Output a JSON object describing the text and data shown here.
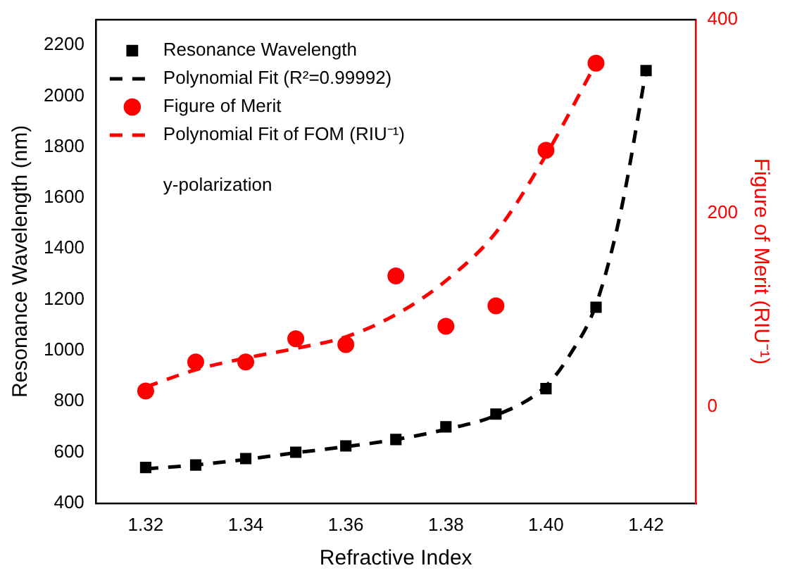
{
  "chart_data": {
    "type": "scatter",
    "xlabel": "Refractive Index",
    "ylabel": "Resonance Wavelength (nm)",
    "y2label": "Figure of Merit (RIU⁻¹)",
    "x": [
      1.32,
      1.33,
      1.34,
      1.35,
      1.36,
      1.37,
      1.38,
      1.39,
      1.4,
      1.41,
      1.42
    ],
    "xlim": [
      1.31,
      1.43
    ],
    "xticks": [
      1.32,
      1.34,
      1.36,
      1.38,
      {
        "value": 1.4,
        "label": "1.40"
      },
      1.42
    ],
    "ylim": [
      400,
      2300
    ],
    "yticks": [
      400,
      600,
      800,
      1000,
      1200,
      1400,
      1600,
      1800,
      2000,
      2200
    ],
    "y2lim": [
      -100,
      400
    ],
    "y2ticks": [
      0,
      200,
      400
    ],
    "grid": false,
    "legend": "top left",
    "annotations": [
      "y-polarization"
    ],
    "series": [
      {
        "name": "Resonance Wavelength",
        "type": "scatter",
        "marker": "square",
        "color": "#000000",
        "values": [
          540,
          550,
          575,
          600,
          625,
          650,
          700,
          750,
          850,
          1170,
          2100
        ]
      },
      {
        "name": "Polynomial Fit (R²=0.99992)",
        "type": "line",
        "marker": "none",
        "line_style": "dashed",
        "color": "#000000",
        "x": [
          1.32,
          1.33,
          1.34,
          1.35,
          1.36,
          1.37,
          1.38,
          1.39,
          1.4,
          1.405,
          1.41,
          1.415,
          1.42
        ],
        "values": [
          535,
          550,
          572,
          598,
          622,
          650,
          690,
          745,
          860,
          990,
          1180,
          1550,
          2100
        ]
      },
      {
        "name": "Figure of Merit",
        "type": "scatter",
        "marker": "circle",
        "color": "#ff0000",
        "axis": "y2",
        "x": [
          1.32,
          1.33,
          1.34,
          1.35,
          1.36,
          1.37,
          1.38,
          1.39,
          1.4,
          1.41
        ],
        "values": [
          16,
          46,
          46,
          70,
          64,
          135,
          83,
          104,
          265,
          355
        ]
      },
      {
        "name": "Polynomial Fit of FOM (RIU⁻¹)",
        "type": "line",
        "marker": "none",
        "line_style": "dashed",
        "color": "#ff0000",
        "axis": "y2",
        "x": [
          1.32,
          1.33,
          1.34,
          1.35,
          1.36,
          1.37,
          1.38,
          1.39,
          1.4,
          1.41
        ],
        "values": [
          20,
          38,
          50,
          60,
          72,
          95,
          130,
          180,
          260,
          355
        ]
      }
    ]
  }
}
